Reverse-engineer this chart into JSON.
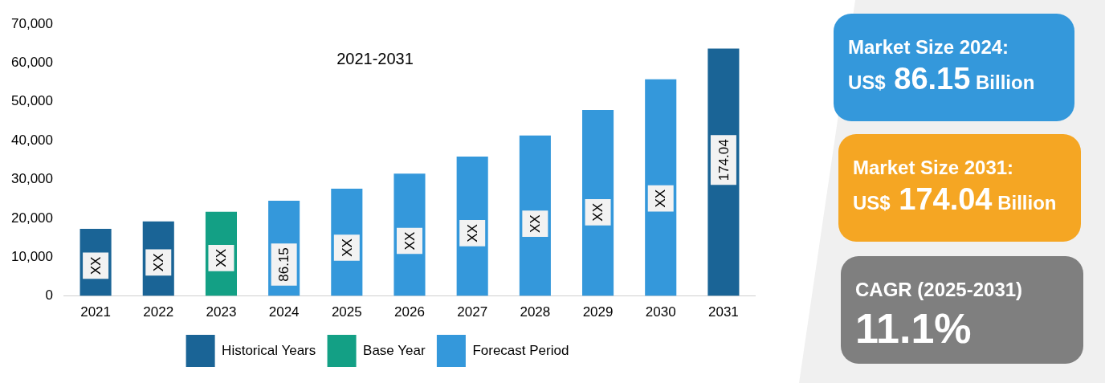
{
  "chart_data": {
    "type": "bar",
    "title": "2021-2031",
    "stacked": true,
    "categories": [
      "2021",
      "2022",
      "2023",
      "2024",
      "2025",
      "2026",
      "2027",
      "2028",
      "2029",
      "2030",
      "2031"
    ],
    "series": [
      {
        "name": "Historical Years",
        "color": "#1a6496",
        "values": [
          17300,
          19200,
          null,
          null,
          null,
          null,
          null,
          null,
          null,
          null,
          63700
        ],
        "value_labels": [
          "XX",
          "XX",
          null,
          null,
          null,
          null,
          null,
          null,
          null,
          null,
          null
        ]
      },
      {
        "name": "Base Year",
        "color": "#13a085",
        "values": [
          null,
          null,
          21700,
          null,
          null,
          null,
          null,
          null,
          null,
          null,
          null
        ],
        "value_labels": [
          null,
          null,
          "XX",
          null,
          null,
          null,
          null,
          null,
          null,
          null,
          null
        ]
      },
      {
        "name": "Forecast Period",
        "color": "#3498db",
        "values": [
          null,
          null,
          null,
          24500,
          27600,
          31500,
          35900,
          41300,
          47900,
          55800,
          null
        ],
        "value_labels": [
          null,
          null,
          null,
          null,
          "XX",
          "XX",
          "XX",
          "XX",
          "XX",
          "XX",
          null
        ]
      }
    ],
    "ylim": [
      0,
      70000
    ],
    "yticks": [
      {
        "value": 0,
        "label": "0"
      },
      {
        "value": 10000,
        "label": "10,000"
      },
      {
        "value": 20000,
        "label": "20,000"
      },
      {
        "value": 30000,
        "label": "30,000"
      },
      {
        "value": 40000,
        "label": "40,000"
      },
      {
        "value": 50000,
        "label": "50,000"
      },
      {
        "value": 60000,
        "label": "60,000"
      },
      {
        "value": 70000,
        "label": "70,000"
      }
    ],
    "grid": false,
    "legend": "bottom",
    "annotations": [
      "86.15",
      "174.04",
      "Market Size 2024:",
      "US$ 86.15 Billion",
      "Market Size 2031:",
      "US$ 174.04 Billion",
      "CAGR (2025-2031)",
      "11.1%"
    ]
  }
}
